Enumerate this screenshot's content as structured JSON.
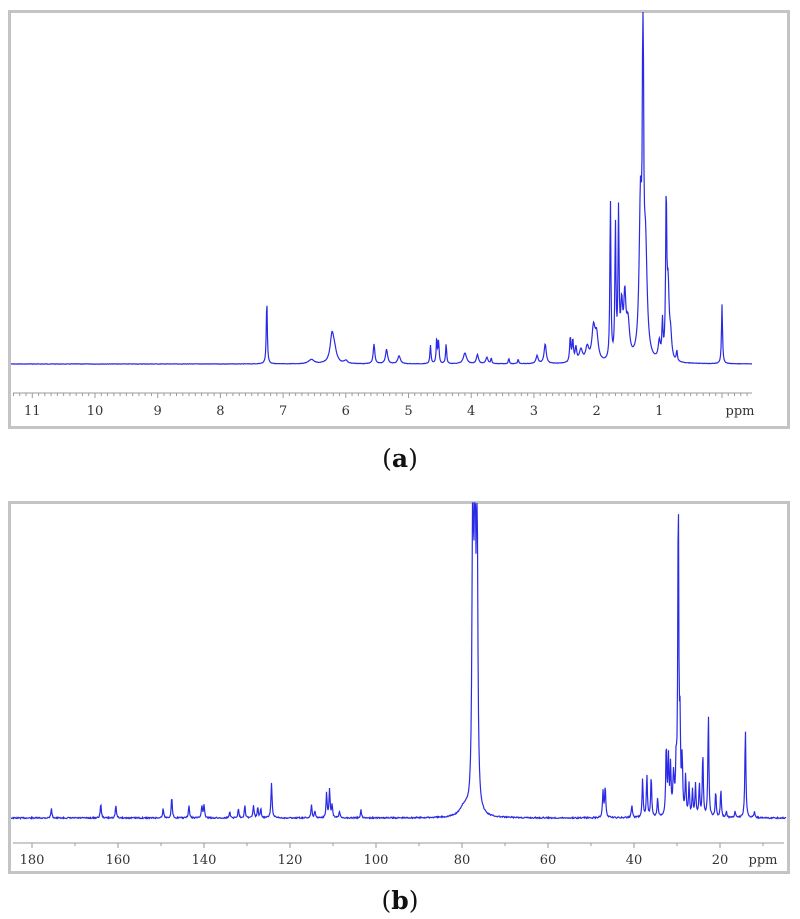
{
  "captions": {
    "a": "a",
    "b": "b"
  },
  "chart_data": [
    {
      "id": "a",
      "type": "line",
      "title": "",
      "xlabel": "ppm",
      "ylabel": "",
      "x_reversed": true,
      "xlim": [
        11.4,
        -0.45
      ],
      "xticks": [
        11,
        10,
        9,
        8,
        7,
        6,
        5,
        4,
        3,
        2,
        1
      ],
      "xtick_labels": [
        "11",
        "10",
        "9",
        "8",
        "7",
        "6",
        "5",
        "4",
        "3",
        "2",
        "1"
      ],
      "unit_label": "ppm",
      "minor_ticks_per_major": 10,
      "grid": false,
      "color": "#2a2ae6",
      "peaks": [
        {
          "ppm": 7.26,
          "height": 0.18,
          "width": 0.006
        },
        {
          "ppm": 6.55,
          "height": 0.012,
          "width": 0.05
        },
        {
          "ppm": 6.22,
          "height": 0.075,
          "width": 0.035
        },
        {
          "ppm": 6.18,
          "height": 0.03,
          "width": 0.04
        },
        {
          "ppm": 6.0,
          "height": 0.008,
          "width": 0.03
        },
        {
          "ppm": 5.55,
          "height": 0.055,
          "width": 0.015
        },
        {
          "ppm": 5.35,
          "height": 0.04,
          "width": 0.02
        },
        {
          "ppm": 5.15,
          "height": 0.022,
          "width": 0.025
        },
        {
          "ppm": 4.65,
          "height": 0.052,
          "width": 0.01
        },
        {
          "ppm": 4.55,
          "height": 0.07,
          "width": 0.01
        },
        {
          "ppm": 4.52,
          "height": 0.06,
          "width": 0.01
        },
        {
          "ppm": 4.4,
          "height": 0.055,
          "width": 0.01
        },
        {
          "ppm": 4.1,
          "height": 0.03,
          "width": 0.03
        },
        {
          "ppm": 3.9,
          "height": 0.025,
          "width": 0.02
        },
        {
          "ppm": 3.75,
          "height": 0.018,
          "width": 0.02
        },
        {
          "ppm": 3.68,
          "height": 0.015,
          "width": 0.01
        },
        {
          "ppm": 3.4,
          "height": 0.015,
          "width": 0.01
        },
        {
          "ppm": 3.25,
          "height": 0.012,
          "width": 0.01
        },
        {
          "ppm": 2.95,
          "height": 0.022,
          "width": 0.02
        },
        {
          "ppm": 2.82,
          "height": 0.055,
          "width": 0.02
        },
        {
          "ppm": 2.42,
          "height": 0.07,
          "width": 0.012
        },
        {
          "ppm": 2.38,
          "height": 0.06,
          "width": 0.012
        },
        {
          "ppm": 2.33,
          "height": 0.04,
          "width": 0.015
        },
        {
          "ppm": 2.25,
          "height": 0.035,
          "width": 0.03
        },
        {
          "ppm": 2.15,
          "height": 0.04,
          "width": 0.03
        },
        {
          "ppm": 2.05,
          "height": 0.09,
          "width": 0.03
        },
        {
          "ppm": 2.0,
          "height": 0.07,
          "width": 0.03
        },
        {
          "ppm": 1.78,
          "height": 0.45,
          "width": 0.008
        },
        {
          "ppm": 1.7,
          "height": 0.37,
          "width": 0.01
        },
        {
          "ppm": 1.65,
          "height": 0.4,
          "width": 0.01
        },
        {
          "ppm": 1.6,
          "height": 0.14,
          "width": 0.02
        },
        {
          "ppm": 1.55,
          "height": 0.16,
          "width": 0.02
        },
        {
          "ppm": 1.5,
          "height": 0.1,
          "width": 0.03
        },
        {
          "ppm": 1.3,
          "height": 0.42,
          "width": 0.025
        },
        {
          "ppm": 1.26,
          "height": 1.0,
          "width": 0.01
        },
        {
          "ppm": 1.22,
          "height": 0.3,
          "width": 0.03
        },
        {
          "ppm": 1.0,
          "height": 0.05,
          "width": 0.02
        },
        {
          "ppm": 0.95,
          "height": 0.1,
          "width": 0.01
        },
        {
          "ppm": 0.89,
          "height": 0.44,
          "width": 0.01
        },
        {
          "ppm": 0.86,
          "height": 0.2,
          "width": 0.02
        },
        {
          "ppm": 0.82,
          "height": 0.06,
          "width": 0.02
        },
        {
          "ppm": 0.72,
          "height": 0.03,
          "width": 0.008
        },
        {
          "ppm": 0.0,
          "height": 0.165,
          "width": 0.005
        }
      ]
    },
    {
      "id": "b",
      "type": "line",
      "title": "",
      "xlabel": "ppm",
      "ylabel": "",
      "x_reversed": true,
      "xlim": [
        186,
        6
      ],
      "xticks": [
        180,
        160,
        140,
        120,
        100,
        80,
        60,
        40,
        20
      ],
      "xtick_labels": [
        "180",
        "160",
        "140",
        "120",
        "100",
        "80",
        "60",
        "40",
        "20"
      ],
      "unit_label": "ppm",
      "minor_ticks_per_major": 2,
      "grid": false,
      "color": "#2a2ae6",
      "peaks": [
        {
          "ppm": 175.5,
          "height": 0.03,
          "width": 0.12
        },
        {
          "ppm": 164.0,
          "height": 0.045,
          "width": 0.12
        },
        {
          "ppm": 160.5,
          "height": 0.04,
          "width": 0.12
        },
        {
          "ppm": 149.5,
          "height": 0.03,
          "width": 0.12
        },
        {
          "ppm": 147.5,
          "height": 0.065,
          "width": 0.12
        },
        {
          "ppm": 143.5,
          "height": 0.04,
          "width": 0.12
        },
        {
          "ppm": 140.5,
          "height": 0.04,
          "width": 0.12
        },
        {
          "ppm": 140.0,
          "height": 0.04,
          "width": 0.12
        },
        {
          "ppm": 134.0,
          "height": 0.02,
          "width": 0.12
        },
        {
          "ppm": 132.0,
          "height": 0.03,
          "width": 0.12
        },
        {
          "ppm": 130.5,
          "height": 0.04,
          "width": 0.12
        },
        {
          "ppm": 128.5,
          "height": 0.04,
          "width": 0.12
        },
        {
          "ppm": 127.5,
          "height": 0.035,
          "width": 0.12
        },
        {
          "ppm": 126.8,
          "height": 0.03,
          "width": 0.12
        },
        {
          "ppm": 124.3,
          "height": 0.11,
          "width": 0.15
        },
        {
          "ppm": 115.0,
          "height": 0.04,
          "width": 0.12
        },
        {
          "ppm": 114.2,
          "height": 0.02,
          "width": 0.12
        },
        {
          "ppm": 111.5,
          "height": 0.08,
          "width": 0.12
        },
        {
          "ppm": 110.8,
          "height": 0.09,
          "width": 0.12
        },
        {
          "ppm": 110.2,
          "height": 0.04,
          "width": 0.12
        },
        {
          "ppm": 108.5,
          "height": 0.02,
          "width": 0.12
        },
        {
          "ppm": 103.5,
          "height": 0.025,
          "width": 0.12
        },
        {
          "ppm": 79.5,
          "height": 0.03,
          "width": 1.2
        },
        {
          "ppm": 77.5,
          "height": 1.0,
          "width": 0.2
        },
        {
          "ppm": 77.0,
          "height": 0.98,
          "width": 0.2
        },
        {
          "ppm": 76.5,
          "height": 0.95,
          "width": 0.2
        },
        {
          "ppm": 47.2,
          "height": 0.08,
          "width": 0.15
        },
        {
          "ppm": 46.7,
          "height": 0.095,
          "width": 0.15
        },
        {
          "ppm": 40.5,
          "height": 0.04,
          "width": 0.15
        },
        {
          "ppm": 38.0,
          "height": 0.12,
          "width": 0.12
        },
        {
          "ppm": 37.0,
          "height": 0.13,
          "width": 0.12
        },
        {
          "ppm": 36.0,
          "height": 0.13,
          "width": 0.12
        },
        {
          "ppm": 34.5,
          "height": 0.06,
          "width": 0.12
        },
        {
          "ppm": 32.5,
          "height": 0.22,
          "width": 0.12
        },
        {
          "ppm": 32.0,
          "height": 0.18,
          "width": 0.12
        },
        {
          "ppm": 31.5,
          "height": 0.15,
          "width": 0.12
        },
        {
          "ppm": 30.8,
          "height": 0.12,
          "width": 0.2
        },
        {
          "ppm": 30.2,
          "height": 0.14,
          "width": 0.15
        },
        {
          "ppm": 29.7,
          "height": 1.0,
          "width": 0.1
        },
        {
          "ppm": 29.3,
          "height": 0.25,
          "width": 0.12
        },
        {
          "ppm": 28.8,
          "height": 0.17,
          "width": 0.12
        },
        {
          "ppm": 28.0,
          "height": 0.12,
          "width": 0.12
        },
        {
          "ppm": 27.2,
          "height": 0.1,
          "width": 0.12
        },
        {
          "ppm": 26.4,
          "height": 0.08,
          "width": 0.12
        },
        {
          "ppm": 25.7,
          "height": 0.1,
          "width": 0.12
        },
        {
          "ppm": 24.8,
          "height": 0.1,
          "width": 0.12
        },
        {
          "ppm": 24.0,
          "height": 0.2,
          "width": 0.12
        },
        {
          "ppm": 22.7,
          "height": 0.32,
          "width": 0.1
        },
        {
          "ppm": 21.0,
          "height": 0.08,
          "width": 0.12
        },
        {
          "ppm": 19.8,
          "height": 0.085,
          "width": 0.12
        },
        {
          "ppm": 18.5,
          "height": 0.02,
          "width": 0.12
        },
        {
          "ppm": 16.5,
          "height": 0.02,
          "width": 0.12
        },
        {
          "ppm": 14.1,
          "height": 0.28,
          "width": 0.1
        },
        {
          "ppm": 12.0,
          "height": 0.02,
          "width": 0.12
        }
      ]
    }
  ]
}
